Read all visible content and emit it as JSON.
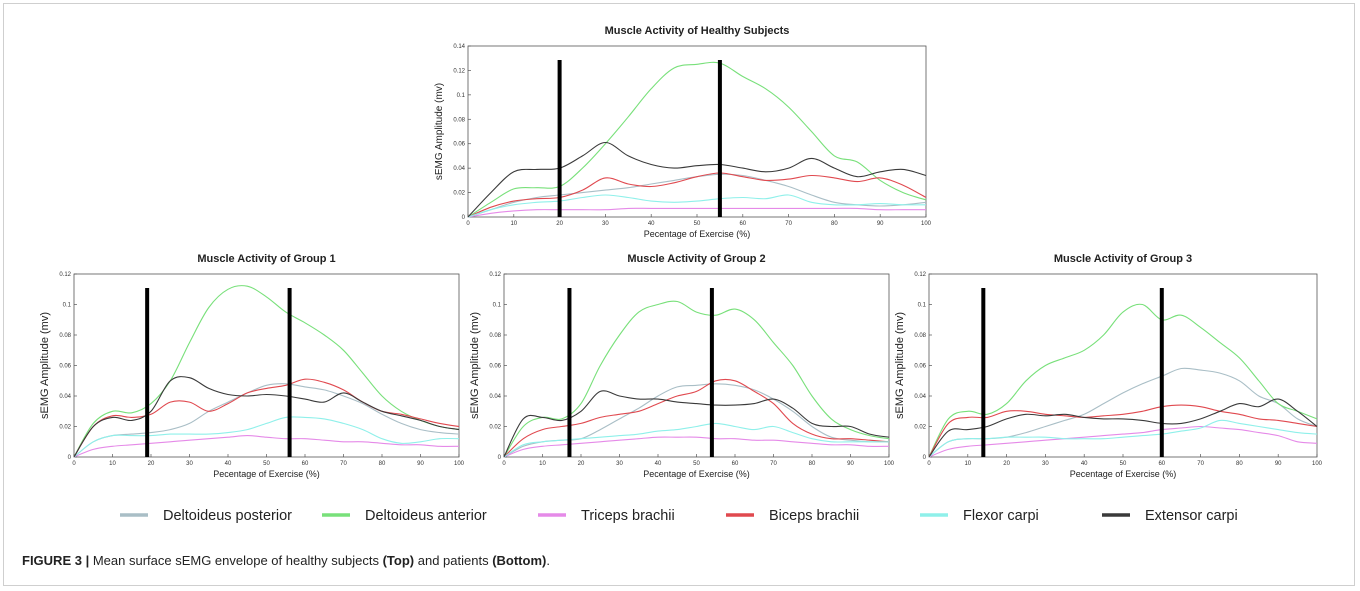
{
  "caption": {
    "label": "FIGURE 3 |",
    "text1": "Mean surface sEMG envelope of healthy subjects ",
    "bold1": "(Top)",
    "text2": " and patients ",
    "bold2": "(Bottom)",
    "end": "."
  },
  "legend": [
    {
      "name": "Deltoideus posterior",
      "color": "#a9bec6"
    },
    {
      "name": "Deltoideus anterior",
      "color": "#78e07a"
    },
    {
      "name": "Triceps brachii",
      "color": "#e58ae8"
    },
    {
      "name": "Biceps brachii",
      "color": "#e0494f"
    },
    {
      "name": "Flexor carpi",
      "color": "#8ff0ea"
    },
    {
      "name": "Extensor carpi",
      "color": "#3a3a3a"
    }
  ],
  "chart_data": [
    {
      "type": "line",
      "title": "Muscle Activity of Healthy Subjects",
      "xlabel": "Pecentage of Exercise (%)",
      "ylabel": "sEMG Amplitude (mv)",
      "xlim": [
        0,
        100
      ],
      "ylim": [
        0,
        0.14
      ],
      "xticks": [
        "0",
        "10",
        "20",
        "30",
        "40",
        "50",
        "60",
        "70",
        "80",
        "90",
        "100"
      ],
      "yticks": [
        "0",
        "0.02",
        "0.04",
        "0.06",
        "0.08",
        "0.1",
        "0.12",
        "0.14"
      ],
      "phase_markers": [
        20,
        55
      ],
      "x": [
        0,
        5,
        10,
        15,
        20,
        25,
        30,
        35,
        40,
        45,
        50,
        55,
        60,
        65,
        70,
        75,
        80,
        85,
        90,
        95,
        100
      ],
      "series": [
        {
          "name": "Deltoideus posterior",
          "values": [
            0,
            0.006,
            0.012,
            0.016,
            0.018,
            0.02,
            0.022,
            0.024,
            0.027,
            0.03,
            0.033,
            0.035,
            0.034,
            0.03,
            0.025,
            0.018,
            0.012,
            0.01,
            0.009,
            0.01,
            0.012
          ]
        },
        {
          "name": "Deltoideus anterior",
          "values": [
            0,
            0.012,
            0.023,
            0.024,
            0.025,
            0.04,
            0.06,
            0.082,
            0.105,
            0.122,
            0.125,
            0.126,
            0.115,
            0.105,
            0.09,
            0.07,
            0.05,
            0.045,
            0.03,
            0.02,
            0.014
          ]
        },
        {
          "name": "Triceps brachii",
          "values": [
            0,
            0.003,
            0.005,
            0.006,
            0.006,
            0.006,
            0.006,
            0.007,
            0.007,
            0.007,
            0.007,
            0.007,
            0.007,
            0.007,
            0.007,
            0.007,
            0.007,
            0.007,
            0.006,
            0.006,
            0.006
          ]
        },
        {
          "name": "Biceps brachii",
          "values": [
            0,
            0.008,
            0.013,
            0.015,
            0.016,
            0.022,
            0.032,
            0.027,
            0.025,
            0.028,
            0.033,
            0.036,
            0.033,
            0.03,
            0.031,
            0.034,
            0.032,
            0.029,
            0.032,
            0.026,
            0.016
          ]
        },
        {
          "name": "Flexor carpi",
          "values": [
            0,
            0.006,
            0.01,
            0.012,
            0.013,
            0.016,
            0.018,
            0.016,
            0.013,
            0.012,
            0.013,
            0.015,
            0.016,
            0.015,
            0.018,
            0.012,
            0.01,
            0.01,
            0.011,
            0.01,
            0.01
          ]
        },
        {
          "name": "Extensor carpi",
          "values": [
            0,
            0.02,
            0.037,
            0.039,
            0.04,
            0.05,
            0.061,
            0.05,
            0.043,
            0.04,
            0.042,
            0.043,
            0.04,
            0.037,
            0.04,
            0.048,
            0.04,
            0.033,
            0.037,
            0.039,
            0.034
          ]
        }
      ]
    },
    {
      "type": "line",
      "title": "Muscle Activity of Group 1",
      "xlabel": "Pecentage of Exercise (%)",
      "ylabel": "sEMG Amplitude (mv)",
      "xlim": [
        0,
        100
      ],
      "ylim": [
        0,
        0.12
      ],
      "xticks": [
        "0",
        "10",
        "20",
        "30",
        "40",
        "50",
        "60",
        "70",
        "80",
        "90",
        "100"
      ],
      "yticks": [
        "0",
        "0.02",
        "0.04",
        "0.06",
        "0.08",
        "0.1",
        "0.12"
      ],
      "phase_markers": [
        19,
        56
      ],
      "x": [
        0,
        5,
        10,
        15,
        20,
        25,
        30,
        35,
        40,
        45,
        50,
        55,
        60,
        65,
        70,
        75,
        80,
        85,
        90,
        95,
        100
      ],
      "series": [
        {
          "name": "Deltoideus posterior",
          "values": [
            0,
            0.01,
            0.014,
            0.015,
            0.016,
            0.018,
            0.022,
            0.03,
            0.036,
            0.042,
            0.047,
            0.048,
            0.046,
            0.044,
            0.04,
            0.035,
            0.028,
            0.022,
            0.018,
            0.016,
            0.015
          ]
        },
        {
          "name": "Deltoideus anterior",
          "values": [
            0,
            0.022,
            0.03,
            0.029,
            0.035,
            0.05,
            0.075,
            0.098,
            0.11,
            0.112,
            0.105,
            0.095,
            0.088,
            0.08,
            0.07,
            0.055,
            0.04,
            0.03,
            0.024,
            0.02,
            0.018
          ]
        },
        {
          "name": "Triceps brachii",
          "values": [
            0,
            0.005,
            0.007,
            0.008,
            0.009,
            0.01,
            0.011,
            0.012,
            0.013,
            0.014,
            0.013,
            0.012,
            0.012,
            0.011,
            0.01,
            0.01,
            0.009,
            0.008,
            0.008,
            0.007,
            0.007
          ]
        },
        {
          "name": "Biceps brachii",
          "values": [
            0,
            0.02,
            0.027,
            0.026,
            0.028,
            0.036,
            0.036,
            0.03,
            0.035,
            0.042,
            0.045,
            0.047,
            0.051,
            0.049,
            0.044,
            0.036,
            0.03,
            0.028,
            0.025,
            0.022,
            0.02
          ]
        },
        {
          "name": "Flexor carpi",
          "values": [
            0,
            0.01,
            0.014,
            0.014,
            0.014,
            0.015,
            0.015,
            0.015,
            0.016,
            0.018,
            0.022,
            0.026,
            0.026,
            0.025,
            0.022,
            0.018,
            0.012,
            0.009,
            0.01,
            0.012,
            0.012
          ]
        },
        {
          "name": "Extensor carpi",
          "values": [
            0,
            0.02,
            0.026,
            0.024,
            0.03,
            0.05,
            0.052,
            0.045,
            0.041,
            0.04,
            0.041,
            0.04,
            0.038,
            0.036,
            0.042,
            0.036,
            0.03,
            0.027,
            0.024,
            0.02,
            0.018
          ]
        }
      ]
    },
    {
      "type": "line",
      "title": "Muscle Activity of Group 2",
      "xlabel": "Pecentage of Exercise (%)",
      "ylabel": "sEMG Amplitude (mv)",
      "xlim": [
        0,
        100
      ],
      "ylim": [
        0,
        0.12
      ],
      "xticks": [
        "0",
        "10",
        "20",
        "30",
        "40",
        "50",
        "60",
        "70",
        "80",
        "90",
        "100"
      ],
      "yticks": [
        "0",
        "0.02",
        "0.04",
        "0.06",
        "0.08",
        "0.1",
        "0.12"
      ],
      "phase_markers": [
        17,
        54
      ],
      "x": [
        0,
        5,
        10,
        15,
        20,
        25,
        30,
        35,
        40,
        45,
        50,
        55,
        60,
        65,
        70,
        75,
        80,
        85,
        90,
        95,
        100
      ],
      "series": [
        {
          "name": "Deltoideus posterior",
          "values": [
            0,
            0.007,
            0.01,
            0.011,
            0.012,
            0.018,
            0.025,
            0.032,
            0.04,
            0.046,
            0.047,
            0.048,
            0.047,
            0.044,
            0.038,
            0.03,
            0.02,
            0.013,
            0.011,
            0.01,
            0.01
          ]
        },
        {
          "name": "Deltoideus anterior",
          "values": [
            0,
            0.02,
            0.026,
            0.025,
            0.035,
            0.06,
            0.08,
            0.095,
            0.1,
            0.102,
            0.095,
            0.093,
            0.097,
            0.09,
            0.075,
            0.06,
            0.04,
            0.025,
            0.018,
            0.014,
            0.012
          ]
        },
        {
          "name": "Triceps brachii",
          "values": [
            0,
            0.005,
            0.007,
            0.008,
            0.009,
            0.01,
            0.011,
            0.012,
            0.013,
            0.013,
            0.013,
            0.012,
            0.012,
            0.011,
            0.011,
            0.01,
            0.009,
            0.008,
            0.008,
            0.007,
            0.007
          ]
        },
        {
          "name": "Biceps brachii",
          "values": [
            0,
            0.012,
            0.018,
            0.02,
            0.022,
            0.026,
            0.028,
            0.03,
            0.035,
            0.04,
            0.043,
            0.05,
            0.05,
            0.043,
            0.035,
            0.022,
            0.015,
            0.012,
            0.012,
            0.011,
            0.01
          ]
        },
        {
          "name": "Flexor carpi",
          "values": [
            0,
            0.008,
            0.01,
            0.011,
            0.012,
            0.013,
            0.014,
            0.015,
            0.017,
            0.018,
            0.02,
            0.022,
            0.02,
            0.018,
            0.02,
            0.016,
            0.012,
            0.01,
            0.01,
            0.01,
            0.01
          ]
        },
        {
          "name": "Extensor carpi",
          "values": [
            0,
            0.025,
            0.026,
            0.024,
            0.03,
            0.043,
            0.04,
            0.038,
            0.038,
            0.036,
            0.035,
            0.034,
            0.034,
            0.035,
            0.038,
            0.032,
            0.022,
            0.02,
            0.02,
            0.015,
            0.013
          ]
        }
      ]
    },
    {
      "type": "line",
      "title": "Muscle Activity of Group 3",
      "xlabel": "Pecentage of Exercise (%)",
      "ylabel": "sEMG Amplitude (mv)",
      "xlim": [
        0,
        100
      ],
      "ylim": [
        0,
        0.12
      ],
      "xticks": [
        "0",
        "10",
        "20",
        "30",
        "40",
        "50",
        "60",
        "70",
        "80",
        "90",
        "100"
      ],
      "yticks": [
        "0",
        "0.02",
        "0.04",
        "0.06",
        "0.08",
        "0.1",
        "0.12"
      ],
      "phase_markers": [
        14,
        60
      ],
      "x": [
        0,
        5,
        10,
        15,
        20,
        25,
        30,
        35,
        40,
        45,
        50,
        55,
        60,
        65,
        70,
        75,
        80,
        85,
        90,
        95,
        100
      ],
      "series": [
        {
          "name": "Deltoideus posterior",
          "values": [
            0,
            0.01,
            0.012,
            0.012,
            0.013,
            0.016,
            0.02,
            0.024,
            0.028,
            0.035,
            0.042,
            0.048,
            0.053,
            0.058,
            0.057,
            0.055,
            0.05,
            0.04,
            0.035,
            0.025,
            0.02
          ]
        },
        {
          "name": "Deltoideus anterior",
          "values": [
            0,
            0.025,
            0.03,
            0.028,
            0.035,
            0.05,
            0.06,
            0.065,
            0.07,
            0.08,
            0.095,
            0.1,
            0.09,
            0.093,
            0.085,
            0.075,
            0.065,
            0.05,
            0.035,
            0.03,
            0.025
          ]
        },
        {
          "name": "Triceps brachii",
          "values": [
            0,
            0.005,
            0.007,
            0.008,
            0.009,
            0.01,
            0.011,
            0.012,
            0.013,
            0.014,
            0.015,
            0.016,
            0.018,
            0.019,
            0.02,
            0.019,
            0.018,
            0.016,
            0.014,
            0.01,
            0.009
          ]
        },
        {
          "name": "Biceps brachii",
          "values": [
            0,
            0.022,
            0.026,
            0.026,
            0.03,
            0.03,
            0.028,
            0.027,
            0.026,
            0.027,
            0.028,
            0.03,
            0.033,
            0.034,
            0.033,
            0.03,
            0.028,
            0.025,
            0.024,
            0.022,
            0.02
          ]
        },
        {
          "name": "Flexor carpi",
          "values": [
            0,
            0.01,
            0.012,
            0.012,
            0.013,
            0.013,
            0.013,
            0.012,
            0.012,
            0.012,
            0.013,
            0.014,
            0.015,
            0.017,
            0.019,
            0.024,
            0.022,
            0.02,
            0.018,
            0.016,
            0.015
          ]
        },
        {
          "name": "Extensor carpi",
          "values": [
            0,
            0.017,
            0.018,
            0.02,
            0.025,
            0.028,
            0.027,
            0.028,
            0.026,
            0.025,
            0.025,
            0.024,
            0.022,
            0.022,
            0.025,
            0.03,
            0.035,
            0.033,
            0.038,
            0.03,
            0.02
          ]
        }
      ]
    }
  ]
}
